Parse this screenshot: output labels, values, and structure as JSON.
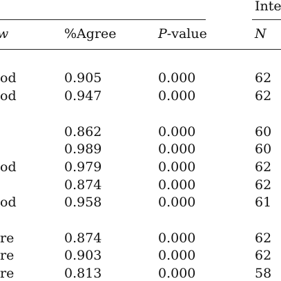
{
  "header": {
    "group_fragment": "Inte",
    "col_fragment": "w",
    "agree": "%Agree",
    "pvalue_p": "P",
    "pvalue_rest": "-value",
    "n": "N"
  },
  "rows": [
    {
      "label": "od",
      "agree": "0.905",
      "p": "0.000",
      "n": "62"
    },
    {
      "label": "od",
      "agree": "0.947",
      "p": "0.000",
      "n": "62"
    },
    {
      "label": "",
      "agree": "0.862",
      "p": "0.000",
      "n": "60"
    },
    {
      "label": "",
      "agree": "0.989",
      "p": "0.000",
      "n": "60"
    },
    {
      "label": "od",
      "agree": "0.979",
      "p": "0.000",
      "n": "62"
    },
    {
      "label": "",
      "agree": "0.874",
      "p": "0.000",
      "n": "62"
    },
    {
      "label": "od",
      "agree": "0.958",
      "p": "0.000",
      "n": "61"
    },
    {
      "label": "re",
      "agree": "0.874",
      "p": "0.000",
      "n": "62"
    },
    {
      "label": "re",
      "agree": "0.903",
      "p": "0.000",
      "n": "62"
    },
    {
      "label": "re",
      "agree": "0.813",
      "p": "0.000",
      "n": "58"
    }
  ]
}
